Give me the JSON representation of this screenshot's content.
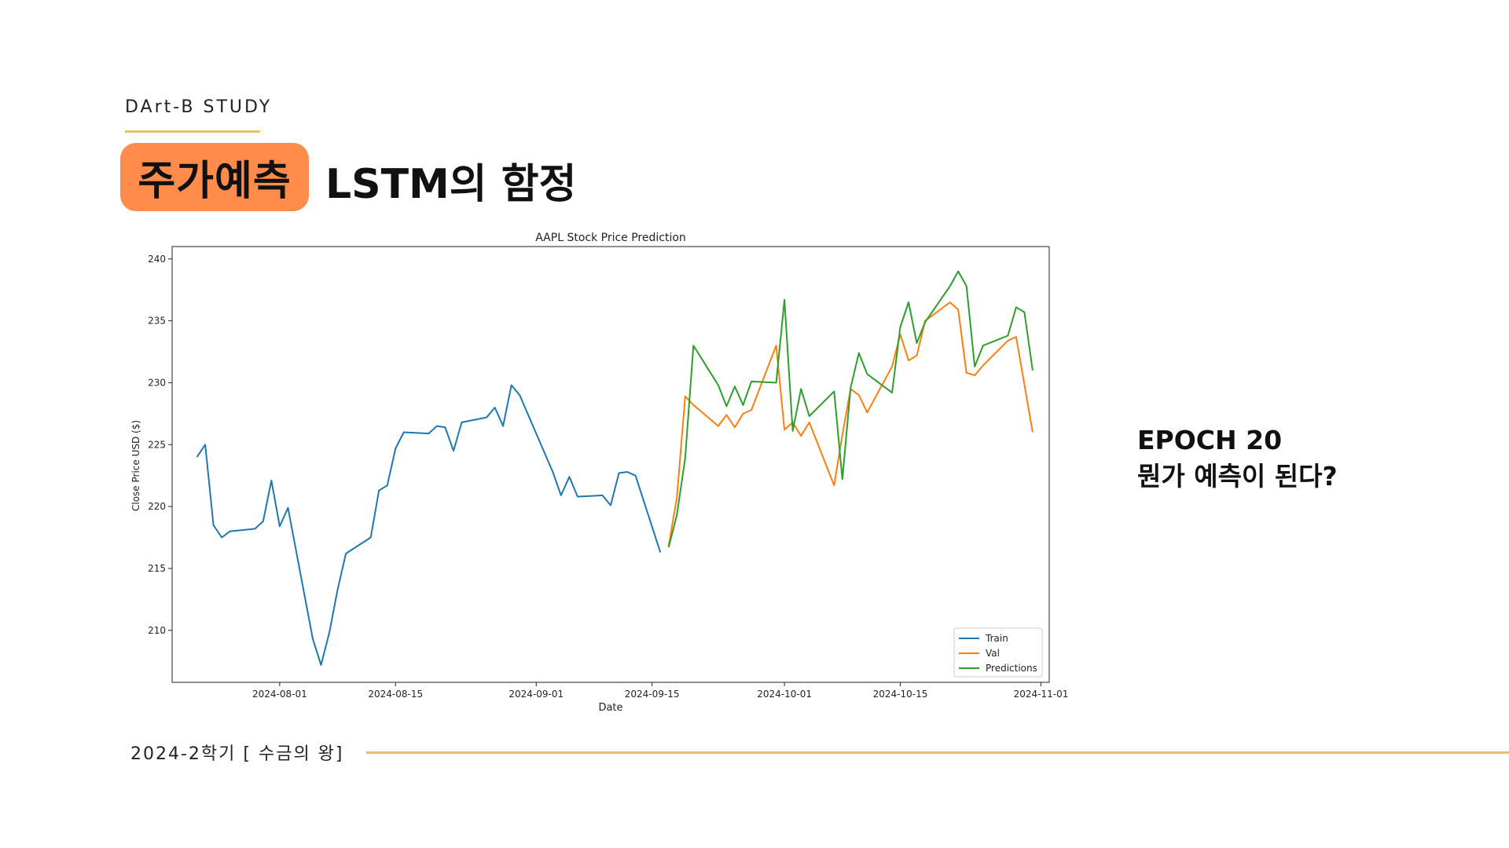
{
  "header": {
    "study_label": "DArt-B STUDY",
    "tag": "주가예측",
    "title": "LSTM의 함정"
  },
  "side_note": {
    "line1": "EPOCH 20",
    "line2": "뭔가 예측이 된다?"
  },
  "footer": {
    "text": "2024-2학기 [ 수금의 왕]"
  },
  "colors": {
    "accent_orange": "#ff8c4a",
    "rule_gold": "#e8c06a",
    "train": "#1f77b4",
    "val": "#ff7f0e",
    "predictions": "#2ca02c"
  },
  "chart_data": {
    "type": "line",
    "title": "AAPL Stock Price Prediction",
    "xlabel": "Date",
    "ylabel": "Close Price USD ($)",
    "xlim": [
      "2024-07-19",
      "2024-11-02"
    ],
    "ylim": [
      205.8,
      241
    ],
    "x_ticks": [
      "2024-08-01",
      "2024-08-15",
      "2024-09-01",
      "2024-09-15",
      "2024-10-01",
      "2024-10-15",
      "2024-11-01"
    ],
    "y_ticks": [
      210,
      215,
      220,
      225,
      230,
      235,
      240
    ],
    "legend_position": "lower-right",
    "grid": false,
    "series": [
      {
        "name": "Train",
        "color": "#1f77b4",
        "points": [
          [
            "2024-07-22",
            224.0
          ],
          [
            "2024-07-23",
            225.0
          ],
          [
            "2024-07-24",
            218.5
          ],
          [
            "2024-07-25",
            217.5
          ],
          [
            "2024-07-26",
            218.0
          ],
          [
            "2024-07-29",
            218.2
          ],
          [
            "2024-07-30",
            218.8
          ],
          [
            "2024-07-31",
            222.1
          ],
          [
            "2024-08-01",
            218.4
          ],
          [
            "2024-08-02",
            219.9
          ],
          [
            "2024-08-05",
            209.3
          ],
          [
            "2024-08-06",
            207.2
          ],
          [
            "2024-08-07",
            209.8
          ],
          [
            "2024-08-08",
            213.3
          ],
          [
            "2024-08-09",
            216.2
          ],
          [
            "2024-08-12",
            217.5
          ],
          [
            "2024-08-13",
            221.3
          ],
          [
            "2024-08-14",
            221.7
          ],
          [
            "2024-08-15",
            224.7
          ],
          [
            "2024-08-16",
            226.0
          ],
          [
            "2024-08-19",
            225.9
          ],
          [
            "2024-08-20",
            226.5
          ],
          [
            "2024-08-21",
            226.4
          ],
          [
            "2024-08-22",
            224.5
          ],
          [
            "2024-08-23",
            226.8
          ],
          [
            "2024-08-26",
            227.2
          ],
          [
            "2024-08-27",
            228.0
          ],
          [
            "2024-08-28",
            226.5
          ],
          [
            "2024-08-29",
            229.8
          ],
          [
            "2024-08-30",
            229.0
          ],
          [
            "2024-09-03",
            222.8
          ],
          [
            "2024-09-04",
            220.9
          ],
          [
            "2024-09-05",
            222.4
          ],
          [
            "2024-09-06",
            220.8
          ],
          [
            "2024-09-09",
            220.9
          ],
          [
            "2024-09-10",
            220.1
          ],
          [
            "2024-09-11",
            222.7
          ],
          [
            "2024-09-12",
            222.8
          ],
          [
            "2024-09-13",
            222.5
          ],
          [
            "2024-09-16",
            216.3
          ]
        ]
      },
      {
        "name": "Val",
        "color": "#ff7f0e",
        "points": [
          [
            "2024-09-17",
            216.8
          ],
          [
            "2024-09-18",
            220.7
          ],
          [
            "2024-09-19",
            228.9
          ],
          [
            "2024-09-20",
            228.2
          ],
          [
            "2024-09-23",
            226.5
          ],
          [
            "2024-09-24",
            227.4
          ],
          [
            "2024-09-25",
            226.4
          ],
          [
            "2024-09-26",
            227.5
          ],
          [
            "2024-09-27",
            227.8
          ],
          [
            "2024-09-30",
            233.0
          ],
          [
            "2024-10-01",
            226.2
          ],
          [
            "2024-10-02",
            226.8
          ],
          [
            "2024-10-03",
            225.7
          ],
          [
            "2024-10-04",
            226.8
          ],
          [
            "2024-10-07",
            221.7
          ],
          [
            "2024-10-08",
            225.8
          ],
          [
            "2024-10-09",
            229.5
          ],
          [
            "2024-10-10",
            229.0
          ],
          [
            "2024-10-11",
            227.6
          ],
          [
            "2024-10-14",
            231.3
          ],
          [
            "2024-10-15",
            233.9
          ],
          [
            "2024-10-16",
            231.8
          ],
          [
            "2024-10-17",
            232.2
          ],
          [
            "2024-10-18",
            235.0
          ],
          [
            "2024-10-21",
            236.5
          ],
          [
            "2024-10-22",
            235.9
          ],
          [
            "2024-10-23",
            230.8
          ],
          [
            "2024-10-24",
            230.6
          ],
          [
            "2024-10-25",
            231.4
          ],
          [
            "2024-10-28",
            233.4
          ],
          [
            "2024-10-29",
            233.7
          ],
          [
            "2024-10-31",
            226.0
          ]
        ]
      },
      {
        "name": "Predictions",
        "color": "#2ca02c",
        "points": [
          [
            "2024-09-17",
            216.7
          ],
          [
            "2024-09-18",
            219.3
          ],
          [
            "2024-09-19",
            223.9
          ],
          [
            "2024-09-20",
            233.0
          ],
          [
            "2024-09-23",
            229.8
          ],
          [
            "2024-09-24",
            228.1
          ],
          [
            "2024-09-25",
            229.7
          ],
          [
            "2024-09-26",
            228.2
          ],
          [
            "2024-09-27",
            230.1
          ],
          [
            "2024-09-30",
            230.0
          ],
          [
            "2024-10-01",
            236.7
          ],
          [
            "2024-10-02",
            226.1
          ],
          [
            "2024-10-03",
            229.5
          ],
          [
            "2024-10-04",
            227.3
          ],
          [
            "2024-10-07",
            229.3
          ],
          [
            "2024-10-08",
            222.2
          ],
          [
            "2024-10-09",
            229.6
          ],
          [
            "2024-10-10",
            232.4
          ],
          [
            "2024-10-11",
            230.7
          ],
          [
            "2024-10-14",
            229.2
          ],
          [
            "2024-10-15",
            234.5
          ],
          [
            "2024-10-16",
            236.5
          ],
          [
            "2024-10-17",
            233.2
          ],
          [
            "2024-10-18",
            234.9
          ],
          [
            "2024-10-21",
            237.8
          ],
          [
            "2024-10-22",
            239.0
          ],
          [
            "2024-10-23",
            237.8
          ],
          [
            "2024-10-24",
            231.3
          ],
          [
            "2024-10-25",
            233.0
          ],
          [
            "2024-10-28",
            233.8
          ],
          [
            "2024-10-29",
            236.1
          ],
          [
            "2024-10-30",
            235.7
          ],
          [
            "2024-10-31",
            231.0
          ]
        ]
      }
    ]
  }
}
